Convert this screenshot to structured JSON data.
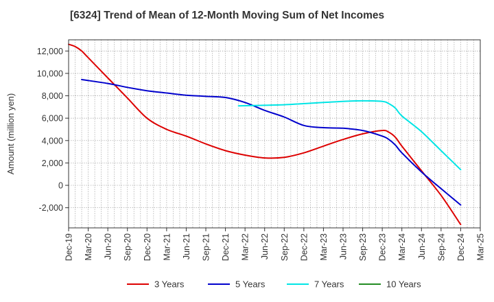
{
  "title": "[6324]  Trend of Mean of 12-Month Moving Sum of Net Incomes",
  "chart_data": {
    "type": "line",
    "ylabel": "Amount (million yen)",
    "xlabel": "",
    "ylim": [
      -3800,
      13000
    ],
    "yticks": [
      -2000,
      0,
      2000,
      4000,
      6000,
      8000,
      10000,
      12000
    ],
    "ytick_labels": [
      "-2,000",
      "0",
      "2,000",
      "4,000",
      "6,000",
      "8,000",
      "10,000",
      "12,000"
    ],
    "x_range": [
      "2019-12",
      "2025-03"
    ],
    "x_ticks": [
      "2019-12",
      "2020-03",
      "2020-06",
      "2020-09",
      "2020-12",
      "2021-03",
      "2021-06",
      "2021-09",
      "2021-12",
      "2022-03",
      "2022-06",
      "2022-09",
      "2022-12",
      "2023-03",
      "2023-06",
      "2023-09",
      "2023-12",
      "2024-03",
      "2024-06",
      "2024-09",
      "2024-12",
      "2025-03"
    ],
    "x_tick_labels": [
      "Dec-19",
      "Mar-20",
      "Jun-20",
      "Sep-20",
      "Dec-20",
      "Mar-21",
      "Jun-21",
      "Sep-21",
      "Dec-21",
      "Mar-22",
      "Jun-22",
      "Sep-22",
      "Dec-22",
      "Mar-23",
      "Jun-23",
      "Sep-23",
      "Dec-23",
      "Mar-24",
      "Jun-24",
      "Sep-24",
      "Dec-24",
      "Mar-25"
    ],
    "grid": true,
    "legend_position": "bottom",
    "series": [
      {
        "name": "3 Years",
        "color": "#dd0000",
        "points": [
          [
            "2019-12",
            12600
          ],
          [
            "2020-01",
            12400
          ],
          [
            "2020-02",
            12000
          ],
          [
            "2020-03",
            11400
          ],
          [
            "2020-06",
            9600
          ],
          [
            "2020-09",
            7800
          ],
          [
            "2020-12",
            6000
          ],
          [
            "2021-03",
            5000
          ],
          [
            "2021-06",
            4400
          ],
          [
            "2021-09",
            3700
          ],
          [
            "2021-12",
            3100
          ],
          [
            "2022-03",
            2700
          ],
          [
            "2022-06",
            2450
          ],
          [
            "2022-09",
            2500
          ],
          [
            "2022-12",
            2900
          ],
          [
            "2023-03",
            3500
          ],
          [
            "2023-06",
            4100
          ],
          [
            "2023-09",
            4600
          ],
          [
            "2023-12",
            4900
          ],
          [
            "2024-01",
            4750
          ],
          [
            "2024-02",
            4300
          ],
          [
            "2024-03",
            3500
          ],
          [
            "2024-06",
            1300
          ],
          [
            "2024-09",
            -900
          ],
          [
            "2024-12",
            -3500
          ]
        ]
      },
      {
        "name": "5 Years",
        "color": "#0000cc",
        "points": [
          [
            "2020-02",
            9450
          ],
          [
            "2020-06",
            9100
          ],
          [
            "2020-09",
            8750
          ],
          [
            "2020-12",
            8450
          ],
          [
            "2021-03",
            8250
          ],
          [
            "2021-06",
            8050
          ],
          [
            "2021-09",
            7950
          ],
          [
            "2021-12",
            7850
          ],
          [
            "2022-03",
            7400
          ],
          [
            "2022-06",
            6700
          ],
          [
            "2022-09",
            6100
          ],
          [
            "2022-12",
            5350
          ],
          [
            "2023-03",
            5150
          ],
          [
            "2023-06",
            5100
          ],
          [
            "2023-09",
            4900
          ],
          [
            "2023-12",
            4400
          ],
          [
            "2024-01",
            4100
          ],
          [
            "2024-02",
            3600
          ],
          [
            "2024-03",
            2900
          ],
          [
            "2024-06",
            1200
          ],
          [
            "2024-09",
            -300
          ],
          [
            "2024-12",
            -1750
          ]
        ]
      },
      {
        "name": "7 Years",
        "color": "#00e5e5",
        "points": [
          [
            "2022-02",
            7100
          ],
          [
            "2022-06",
            7150
          ],
          [
            "2022-09",
            7200
          ],
          [
            "2022-12",
            7300
          ],
          [
            "2023-03",
            7400
          ],
          [
            "2023-06",
            7500
          ],
          [
            "2023-09",
            7550
          ],
          [
            "2023-12",
            7500
          ],
          [
            "2024-01",
            7300
          ],
          [
            "2024-02",
            6900
          ],
          [
            "2024-03",
            6200
          ],
          [
            "2024-06",
            4800
          ],
          [
            "2024-09",
            3100
          ],
          [
            "2024-12",
            1400
          ]
        ]
      },
      {
        "name": "10 Years",
        "color": "#228b22",
        "points": []
      }
    ]
  }
}
